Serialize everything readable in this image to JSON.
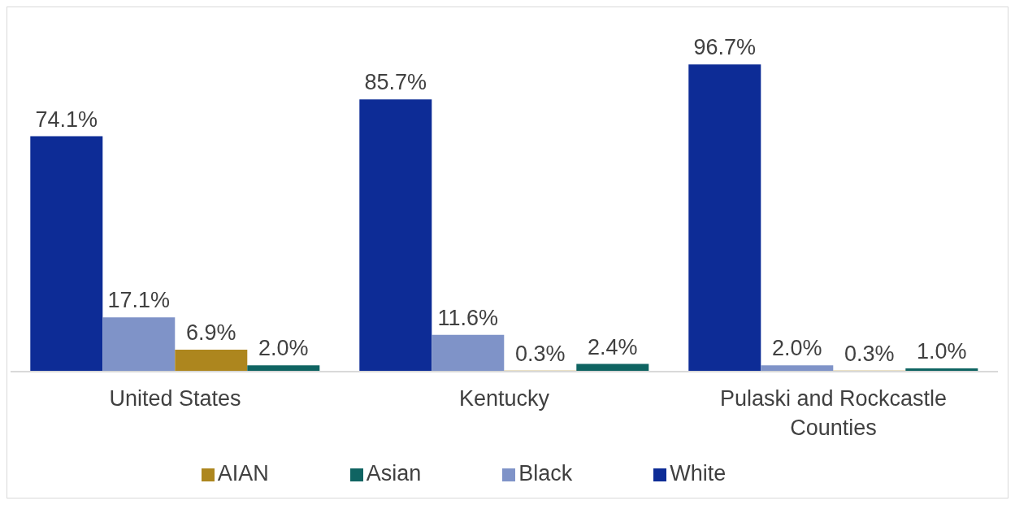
{
  "chart_data": {
    "type": "bar",
    "categories": [
      "United States",
      "Kentucky",
      "Pulaski and Rockcastle Counties"
    ],
    "series": [
      {
        "name": "White",
        "color": "#0d2c96",
        "values": [
          74.1,
          85.7,
          96.7
        ],
        "value_labels": [
          "74.1%",
          "85.7%",
          "96.7%"
        ]
      },
      {
        "name": "Black",
        "color": "#7f93c8",
        "values": [
          17.1,
          11.6,
          2.0
        ],
        "value_labels": [
          "17.1%",
          "11.6%",
          "2.0%"
        ]
      },
      {
        "name": "AIAN",
        "color": "#ad861e",
        "values": [
          6.9,
          0.3,
          0.3
        ],
        "value_labels": [
          "6.9%",
          "0.3%",
          "0.3%"
        ]
      },
      {
        "name": "Asian",
        "color": "#0f6462",
        "values": [
          2.0,
          2.4,
          1.0
        ],
        "value_labels": [
          "2.0%",
          "2.4%",
          "1.0%"
        ]
      }
    ],
    "legend": "bottom",
    "grid": false
  }
}
